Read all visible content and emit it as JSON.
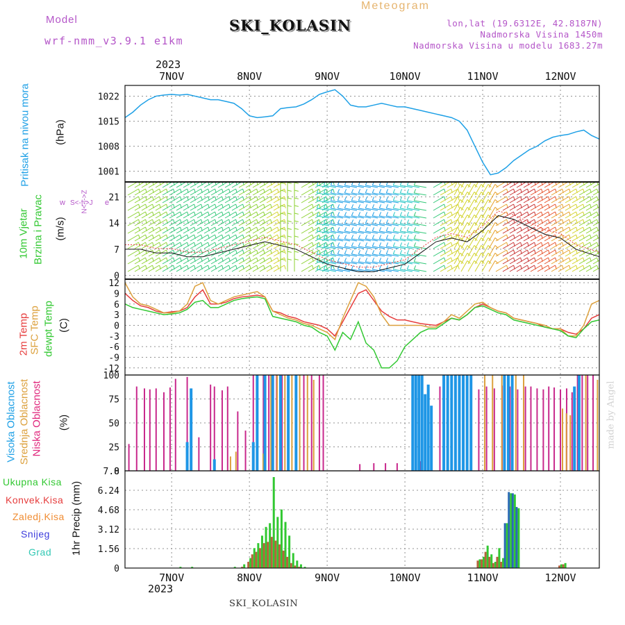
{
  "header": {
    "model_label": "Model",
    "model_name": "wrf-nmm_v3.9.1 e1km",
    "meteogram_label": "Meteogram",
    "station_title": "SKI_KOLASIN",
    "lonlat": "lon,lat (19.6312E, 42.8187N)",
    "elevation": "Nadmorska Visina 1450m",
    "model_elevation": "Nadmorska Visina u modelu 1683.27m",
    "year_top": "2023",
    "year_bottom": "2023",
    "footer_station": "SKI_KOLASIN",
    "credit": "made by Angel"
  },
  "colors": {
    "pressure": "#1ea0e6",
    "model_label": "#b455c8",
    "meteogram_label": "#e6b46e",
    "info_text": "#b455c8",
    "high_cloud": "#1e96e6",
    "mid_cloud": "#dca03c",
    "low_cloud": "#c8288c",
    "t2m": "#e63c3c",
    "sfc": "#dca03c",
    "dewpt": "#32c832",
    "total_precip": "#32c832",
    "convective": "#e63c3c",
    "frozen": "#f08c32",
    "snow": "#3c3cdc",
    "graupel": "#32c8b4",
    "credit": "#d2d2d2"
  },
  "panels": {
    "pressure": {
      "label_line1": "Pritisak na nivou mora",
      "unit": "(hPa)",
      "ticks": [
        "1022",
        "1015",
        "1008",
        "1001"
      ]
    },
    "wind": {
      "label_line1": "10m Vjetar",
      "label_line2": "Brzina i Pravac",
      "unit": "(m/s)",
      "ticks": [
        "21",
        "14",
        "7",
        "0"
      ],
      "compass_w": "w",
      "compass_e": "e",
      "compass_ns": "N<-|->Z",
      "compass_sj": "S<-|->J"
    },
    "temperature": {
      "label_t2m": "2m Temp",
      "label_sfc": "SFC Temp",
      "label_dew": "dewpt Temp",
      "unit": "(C)",
      "ticks": [
        "12",
        "9",
        "6",
        "3",
        "0",
        "-3",
        "-6",
        "-9",
        "-12"
      ]
    },
    "cloud": {
      "label_high": "Visoka Oblacnost",
      "label_mid": "Srednja Oblacnost",
      "label_low": "Niska Oblacnost",
      "unit": "(%)",
      "ticks": [
        "100",
        "75",
        "50",
        "25",
        "0"
      ]
    },
    "precip": {
      "legend_total": "Ukupna Kisa",
      "legend_conv": "Konvek.Kisa",
      "legend_frozen": "Zaledj.Kisa",
      "legend_snow": "Snijeg",
      "legend_graupel": "Grad",
      "axis_label": "1hr Precip (mm)",
      "ticks": [
        "7.8",
        "6.24",
        "4.68",
        "3.12",
        "1.56",
        "0"
      ]
    }
  },
  "chart_data": {
    "type": "line",
    "x_unit": "day of November 2023 (tick at 00 UTC)",
    "x_range": [
      6.4,
      12.5
    ],
    "day_ticks": [
      "7NOV",
      "8NOV",
      "9NOV",
      "10NOV",
      "11NOV",
      "12NOV"
    ],
    "day_tick_values": [
      7,
      8,
      9,
      10,
      11,
      12
    ],
    "pressure": {
      "ylim": [
        998,
        1025
      ],
      "x": [
        6.4,
        6.5,
        6.6,
        6.7,
        6.8,
        6.9,
        7.0,
        7.1,
        7.2,
        7.3,
        7.4,
        7.5,
        7.6,
        7.7,
        7.8,
        7.9,
        8.0,
        8.1,
        8.2,
        8.3,
        8.4,
        8.5,
        8.6,
        8.7,
        8.8,
        8.9,
        9.0,
        9.1,
        9.2,
        9.3,
        9.4,
        9.5,
        9.6,
        9.7,
        9.8,
        9.9,
        10.0,
        10.1,
        10.2,
        10.3,
        10.4,
        10.5,
        10.6,
        10.7,
        10.8,
        10.9,
        11.0,
        11.1,
        11.2,
        11.3,
        11.4,
        11.5,
        11.6,
        11.7,
        11.8,
        11.9,
        12.0,
        12.1,
        12.2,
        12.3,
        12.4,
        12.5
      ],
      "values": [
        1016.0,
        1017.5,
        1019.5,
        1021.0,
        1022.0,
        1022.3,
        1022.5,
        1022.3,
        1022.5,
        1022.0,
        1021.5,
        1021.0,
        1021.0,
        1020.5,
        1020.0,
        1018.5,
        1016.5,
        1016.0,
        1016.2,
        1016.5,
        1018.5,
        1018.8,
        1019.0,
        1019.8,
        1021.0,
        1022.5,
        1023.2,
        1023.8,
        1022.0,
        1019.5,
        1019.0,
        1019.0,
        1019.5,
        1020.0,
        1019.5,
        1019.0,
        1019.0,
        1018.5,
        1018.0,
        1017.5,
        1017.0,
        1016.5,
        1016.0,
        1015.0,
        1012.5,
        1008.0,
        1003.5,
        1000.0,
        1000.5,
        1002.0,
        1004.0,
        1005.5,
        1007.0,
        1008.0,
        1009.5,
        1010.5,
        1011.0,
        1011.3,
        1012.0,
        1012.5,
        1011.0,
        1010.0
      ]
    },
    "wind": {
      "ylim": [
        -1,
        25
      ],
      "x": [
        6.4,
        6.6,
        6.8,
        7.0,
        7.2,
        7.4,
        7.6,
        7.8,
        8.0,
        8.2,
        8.4,
        8.6,
        8.8,
        9.0,
        9.2,
        9.4,
        9.6,
        9.8,
        10.0,
        10.2,
        10.4,
        10.6,
        10.8,
        11.0,
        11.2,
        11.4,
        11.6,
        11.8,
        12.0,
        12.2,
        12.5
      ],
      "speed": [
        7,
        7,
        6,
        6,
        5,
        5,
        6,
        7,
        8,
        9,
        8,
        7,
        5,
        3,
        2,
        1,
        1,
        2,
        3,
        6,
        9,
        10,
        9,
        12,
        16,
        15,
        13,
        11,
        10,
        7,
        5
      ]
    },
    "temperature": {
      "ylim": [
        -14,
        13
      ],
      "x": [
        6.4,
        6.5,
        6.6,
        6.7,
        6.8,
        6.9,
        7.0,
        7.1,
        7.2,
        7.3,
        7.4,
        7.5,
        7.6,
        7.7,
        7.8,
        7.9,
        8.0,
        8.1,
        8.2,
        8.3,
        8.4,
        8.5,
        8.6,
        8.7,
        8.8,
        8.9,
        9.0,
        9.1,
        9.2,
        9.3,
        9.4,
        9.5,
        9.6,
        9.7,
        9.8,
        9.9,
        10.0,
        10.1,
        10.2,
        10.3,
        10.4,
        10.5,
        10.6,
        10.7,
        10.8,
        10.9,
        11.0,
        11.1,
        11.2,
        11.3,
        11.4,
        11.5,
        11.6,
        11.7,
        11.8,
        11.9,
        12.0,
        12.1,
        12.2,
        12.3,
        12.4,
        12.5
      ],
      "series": [
        {
          "name": "2m Temp",
          "values": [
            9,
            7,
            5.5,
            5,
            4,
            3.5,
            3.8,
            4,
            5,
            8,
            10,
            6,
            6,
            6.5,
            7.5,
            8,
            8.2,
            8.5,
            8,
            4,
            3.5,
            2.5,
            2,
            1,
            0.5,
            0,
            -1,
            -3,
            1,
            5,
            9,
            10,
            7,
            4,
            2.5,
            1.5,
            1.5,
            1,
            0.5,
            0.2,
            0,
            1,
            2,
            1.5,
            3,
            5,
            6,
            5,
            4,
            3.5,
            2,
            1.5,
            1,
            0.5,
            -0.5,
            -1,
            -1,
            -2,
            -2.5,
            -1,
            2,
            3
          ]
        },
        {
          "name": "SFC Temp",
          "values": [
            12,
            8,
            6,
            5.5,
            4.5,
            3.5,
            3.5,
            4,
            6,
            11,
            12,
            7,
            6,
            7,
            8,
            8.5,
            9,
            9.5,
            8,
            4,
            3,
            2,
            1.5,
            0.5,
            0,
            -1,
            -2,
            -4,
            2,
            7,
            12,
            11,
            8,
            3,
            0,
            0,
            0,
            0,
            0,
            -0.5,
            -0.5,
            1,
            3,
            2,
            4,
            6,
            6.5,
            5,
            4,
            3.5,
            2,
            1.5,
            1,
            0.5,
            0,
            -1,
            -1,
            -3,
            -3,
            0,
            6,
            7
          ]
        },
        {
          "name": "dewpt Temp",
          "values": [
            6,
            5,
            4.5,
            4,
            3.5,
            3,
            3.2,
            3.5,
            4.5,
            6.5,
            7,
            5,
            5,
            6,
            7,
            7.5,
            7.8,
            8,
            7.5,
            2.5,
            2,
            1.5,
            1,
            0,
            -0.5,
            -2,
            -3,
            -7,
            -2,
            -4,
            1,
            -5,
            -7,
            -12,
            -12,
            -10,
            -6,
            -4,
            -2,
            -1,
            -1,
            0.5,
            2,
            1.5,
            3,
            5,
            5.5,
            4.5,
            3.5,
            3,
            1.5,
            1,
            0.5,
            0,
            -0.5,
            -1,
            -1.5,
            -3,
            -3.5,
            -1,
            1,
            1.5
          ]
        }
      ]
    },
    "cloud": {
      "ylim": [
        0,
        100
      ],
      "x_low": [
        6.45,
        6.55,
        6.65,
        6.72,
        6.8,
        6.9,
        6.98,
        7.05,
        7.2,
        7.35,
        7.5,
        7.55,
        7.65,
        7.72,
        7.85,
        7.95,
        8.05,
        8.1,
        8.18,
        8.25,
        8.35,
        8.42,
        8.5,
        8.6,
        8.7,
        8.8,
        8.9,
        8.95,
        9.3,
        9.42,
        9.6,
        9.75,
        9.9,
        10.1,
        10.2,
        10.3,
        10.45,
        10.55,
        10.65,
        10.75,
        10.85,
        10.95,
        11.05,
        11.15,
        11.25,
        11.35,
        11.45,
        11.55,
        11.62,
        11.7,
        11.78,
        11.85,
        11.92,
        12.0,
        12.08,
        12.15,
        12.22,
        12.28,
        12.35,
        12.42
      ],
      "low": [
        28,
        88,
        86,
        85,
        86,
        82,
        87,
        96,
        98,
        35,
        90,
        88,
        84,
        88,
        62,
        42,
        100,
        98,
        100,
        100,
        100,
        100,
        100,
        100,
        100,
        100,
        100,
        100,
        0,
        7,
        8,
        8,
        8,
        6,
        10,
        8,
        88,
        86,
        85,
        88,
        90,
        85,
        88,
        86,
        89,
        88,
        85,
        88,
        88,
        86,
        85,
        88,
        87,
        85,
        86,
        82,
        100,
        100,
        100,
        100
      ],
      "x_mid": [
        7.73,
        7.8,
        8.15,
        8.25,
        8.33,
        8.43,
        8.52,
        8.62,
        8.72,
        8.8,
        10.2,
        11.0,
        11.1,
        11.22,
        11.3,
        11.4,
        11.5,
        12.0,
        12.05,
        12.1,
        12.3,
        12.45
      ],
      "mid": [
        15,
        20,
        18,
        100,
        100,
        100,
        100,
        100,
        100,
        95,
        55,
        100,
        100,
        100,
        100,
        100,
        100,
        65,
        60,
        58,
        100,
        95
      ],
      "x_high": [
        7.2,
        7.25,
        7.55,
        8.05,
        8.1,
        8.2,
        8.3,
        8.4,
        8.5,
        8.6,
        10.1,
        10.14,
        10.18,
        10.22,
        10.26,
        10.3,
        10.34,
        10.5,
        10.55,
        10.6,
        10.65,
        10.7,
        10.75,
        10.8,
        10.85,
        11.28,
        11.33,
        11.38,
        12.18,
        12.24
      ],
      "high": [
        30,
        86,
        12,
        30,
        100,
        100,
        100,
        100,
        100,
        100,
        100,
        100,
        100,
        100,
        80,
        90,
        68,
        100,
        100,
        100,
        100,
        100,
        100,
        100,
        100,
        100,
        100,
        100,
        88,
        100
      ]
    },
    "precip": {
      "ylim": [
        0,
        7.8
      ],
      "x": [
        7.1,
        7.25,
        7.8,
        7.92,
        8.0,
        8.05,
        8.1,
        8.15,
        8.2,
        8.25,
        8.3,
        8.35,
        8.4,
        8.45,
        8.5,
        8.55,
        8.6,
        8.65,
        8.7,
        10.95,
        11.0,
        11.05,
        11.1,
        11.15,
        11.2,
        11.25,
        11.3,
        11.35,
        11.4,
        11.45,
        12.0,
        12.05
      ],
      "total": [
        0.1,
        0.1,
        0.1,
        0.3,
        0.8,
        1.6,
        2.0,
        2.6,
        3.3,
        3.6,
        7.3,
        4.1,
        4.7,
        3.7,
        2.6,
        1.2,
        0.6,
        0.3,
        0.1,
        0.7,
        0.9,
        1.8,
        1.1,
        0.5,
        1.6,
        0.8,
        3.6,
        6.0,
        5.9,
        4.8,
        0.3,
        0.4
      ],
      "convective": [
        0,
        0,
        0,
        0.1,
        0.5,
        1.1,
        1.3,
        1.6,
        2.0,
        2.1,
        2.5,
        2.2,
        1.9,
        1.4,
        0.9,
        0.4,
        0.2,
        0.1,
        0,
        0.6,
        0.7,
        1.3,
        0.9,
        0.4,
        0.9,
        0.5,
        0.4,
        0,
        0,
        0,
        0.2,
        0.3
      ],
      "snow": [
        0,
        0,
        0,
        0,
        0,
        0,
        0,
        0,
        0,
        0,
        0,
        0,
        0,
        0,
        0,
        0,
        0,
        0,
        0,
        0,
        0,
        0,
        0,
        0,
        0,
        0,
        3.6,
        6.1,
        6.0,
        4.9,
        0,
        0
      ]
    }
  }
}
